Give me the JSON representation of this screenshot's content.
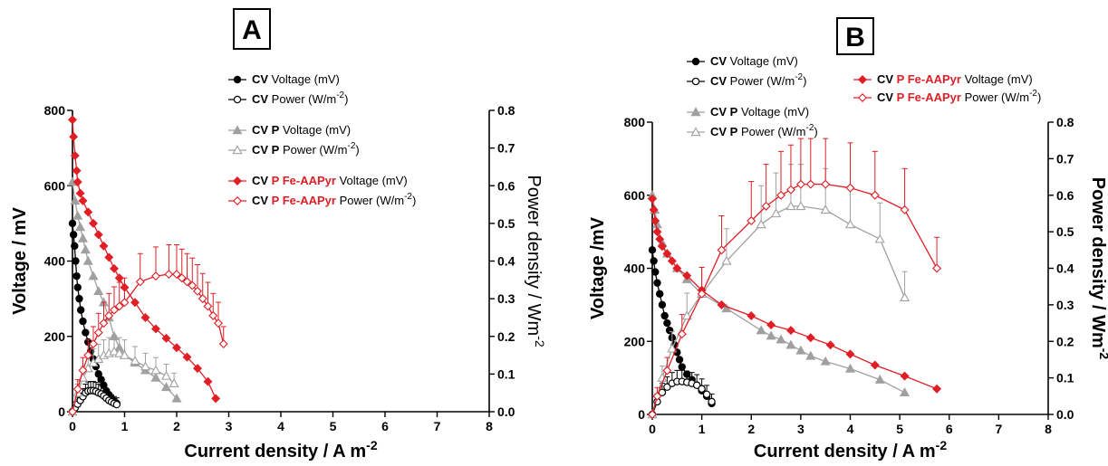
{
  "chart_data": [
    {
      "type": "line",
      "panel": "A",
      "xlabel": "Current density / A m",
      "xlabel_sup": "-2",
      "ylabel": "Voltage / mV",
      "y2label": "Power density / Wm",
      "y2label_sup": "-2",
      "xlim": [
        0,
        8
      ],
      "ylim": [
        0,
        800
      ],
      "y2lim": [
        0,
        0.8
      ],
      "xticks": [
        "0",
        "1",
        "2",
        "3",
        "4",
        "5",
        "6",
        "7",
        "8"
      ],
      "yticks": [
        "0",
        "200",
        "400",
        "600",
        "800"
      ],
      "y2ticks": [
        "0.0",
        "0.1",
        "0.2",
        "0.3",
        "0.4",
        "0.5",
        "0.6",
        "0.7",
        "0.8"
      ],
      "legend_position": "top-right",
      "series": [
        {
          "name": "Voltage (mV)",
          "tag": "CV",
          "tag2": "",
          "color": "#000000",
          "marker": "circle",
          "filled": true,
          "axis": "left",
          "x": [
            0,
            0.02,
            0.04,
            0.06,
            0.08,
            0.1,
            0.13,
            0.16,
            0.2,
            0.25,
            0.3,
            0.35,
            0.4,
            0.45,
            0.5,
            0.55,
            0.6,
            0.65,
            0.7,
            0.75,
            0.8,
            0.85
          ],
          "y": [
            500,
            470,
            440,
            400,
            360,
            330,
            300,
            270,
            240,
            210,
            185,
            160,
            140,
            120,
            100,
            85,
            70,
            55,
            45,
            35,
            28,
            22
          ]
        },
        {
          "name": "Power (W/m",
          "sup": "-2",
          "tail": ")",
          "tag": "CV",
          "tag2": "",
          "color": "#000000",
          "marker": "circle",
          "filled": false,
          "axis": "right",
          "x": [
            0,
            0.05,
            0.1,
            0.15,
            0.2,
            0.25,
            0.3,
            0.35,
            0.4,
            0.45,
            0.5,
            0.55,
            0.6,
            0.65,
            0.7,
            0.75,
            0.8,
            0.85
          ],
          "y": [
            0,
            0.01,
            0.02,
            0.03,
            0.04,
            0.05,
            0.055,
            0.056,
            0.056,
            0.054,
            0.05,
            0.047,
            0.042,
            0.036,
            0.03,
            0.026,
            0.022,
            0.019
          ]
        },
        {
          "name": "Voltage (mV)",
          "tag": "CV",
          "tag2": "P",
          "color": "#a0a0a0",
          "marker": "triangle",
          "filled": true,
          "axis": "left",
          "x": [
            0,
            0.05,
            0.1,
            0.15,
            0.2,
            0.25,
            0.3,
            0.4,
            0.5,
            0.6,
            0.7,
            0.8,
            0.9,
            1.0,
            1.2,
            1.4,
            1.6,
            1.8,
            2.0
          ],
          "y": [
            610,
            560,
            520,
            490,
            460,
            430,
            400,
            360,
            320,
            290,
            250,
            200,
            170,
            150,
            130,
            110,
            90,
            65,
            35
          ]
        },
        {
          "name": "Power (W/m",
          "sup": "-2",
          "tail": ")",
          "tag": "CV",
          "tag2": "P",
          "color": "#a0a0a0",
          "marker": "triangle",
          "filled": false,
          "axis": "right",
          "x": [
            0,
            0.1,
            0.2,
            0.3,
            0.4,
            0.5,
            0.6,
            0.7,
            0.8,
            0.9,
            1.0,
            1.2,
            1.4,
            1.6,
            1.8,
            1.95
          ],
          "y": [
            0,
            0.05,
            0.09,
            0.115,
            0.13,
            0.14,
            0.15,
            0.155,
            0.16,
            0.155,
            0.15,
            0.135,
            0.12,
            0.11,
            0.095,
            0.075
          ]
        },
        {
          "name": "Voltage (mV)",
          "tag": "CV",
          "tag2": "P Fe-AAPyr",
          "color": "#e01e25",
          "marker": "diamond",
          "filled": true,
          "axis": "left",
          "x": [
            0,
            0.02,
            0.05,
            0.08,
            0.1,
            0.15,
            0.2,
            0.3,
            0.4,
            0.5,
            0.6,
            0.7,
            0.8,
            0.9,
            1.0,
            1.2,
            1.4,
            1.6,
            1.8,
            2.0,
            2.2,
            2.4,
            2.6,
            2.75
          ],
          "y": [
            775,
            730,
            680,
            640,
            610,
            580,
            560,
            530,
            500,
            470,
            440,
            410,
            380,
            355,
            330,
            290,
            250,
            220,
            195,
            170,
            145,
            115,
            80,
            35
          ]
        },
        {
          "name": "Power (W/m",
          "sup": "-2",
          "tail": ")",
          "tag": "CV",
          "tag2": "P Fe-AAPyr",
          "color": "#e01e25",
          "marker": "diamond",
          "filled": false,
          "axis": "right",
          "x": [
            0,
            0.1,
            0.2,
            0.3,
            0.4,
            0.5,
            0.6,
            0.7,
            0.8,
            0.9,
            1.0,
            1.3,
            1.6,
            1.85,
            2.0,
            2.1,
            2.2,
            2.3,
            2.4,
            2.5,
            2.6,
            2.7,
            2.8,
            2.9
          ],
          "y": [
            0,
            0.06,
            0.11,
            0.15,
            0.18,
            0.21,
            0.235,
            0.255,
            0.27,
            0.28,
            0.29,
            0.345,
            0.36,
            0.365,
            0.365,
            0.355,
            0.345,
            0.335,
            0.32,
            0.3,
            0.28,
            0.255,
            0.235,
            0.18
          ]
        }
      ]
    },
    {
      "type": "line",
      "panel": "B",
      "xlabel": "Current density / A m",
      "xlabel_sup": "-2",
      "ylabel": "Voltage /mV",
      "y2label": "Power density / Wm",
      "y2label_sup": "-2",
      "xlim": [
        0,
        8
      ],
      "ylim": [
        0,
        800
      ],
      "y2lim": [
        0,
        0.8
      ],
      "xticks": [
        "0",
        "1",
        "2",
        "3",
        "4",
        "5",
        "6",
        "7",
        "8"
      ],
      "yticks": [
        "0",
        "200",
        "400",
        "600",
        "800"
      ],
      "y2ticks": [
        "0.0",
        "0.1",
        "0.2",
        "0.3",
        "0.4",
        "0.5",
        "0.6",
        "0.7",
        "0.8"
      ],
      "legend_position": "top",
      "series": [
        {
          "name": "Voltage (mV)",
          "tag": "CV",
          "tag2": "",
          "color": "#000000",
          "marker": "circle",
          "filled": true,
          "axis": "left",
          "x": [
            0,
            0.03,
            0.06,
            0.1,
            0.15,
            0.2,
            0.25,
            0.3,
            0.35,
            0.4,
            0.45,
            0.5,
            0.55,
            0.6,
            0.7,
            0.8,
            0.9,
            1.0,
            1.1,
            1.2
          ],
          "y": [
            450,
            420,
            390,
            360,
            330,
            300,
            270,
            250,
            230,
            210,
            190,
            170,
            150,
            130,
            110,
            95,
            80,
            65,
            50,
            30
          ]
        },
        {
          "name": "Power (W/m",
          "sup": "-2",
          "tail": ")",
          "tag": "CV",
          "tag2": "",
          "color": "#000000",
          "marker": "circle",
          "filled": false,
          "axis": "right",
          "x": [
            0,
            0.1,
            0.2,
            0.3,
            0.4,
            0.5,
            0.6,
            0.7,
            0.8,
            0.9,
            1.0,
            1.1,
            1.2
          ],
          "y": [
            0,
            0.035,
            0.06,
            0.075,
            0.085,
            0.09,
            0.09,
            0.088,
            0.085,
            0.08,
            0.07,
            0.055,
            0.035
          ]
        },
        {
          "name": "Voltage (mV)",
          "tag": "CV",
          "tag2": "P",
          "color": "#a0a0a0",
          "marker": "triangle",
          "filled": true,
          "axis": "left",
          "x": [
            0,
            0.05,
            0.1,
            0.2,
            0.3,
            0.5,
            0.7,
            1.0,
            1.5,
            2.2,
            2.4,
            2.6,
            2.8,
            3.0,
            3.2,
            3.5,
            4.0,
            4.6,
            5.1
          ],
          "y": [
            600,
            560,
            520,
            470,
            440,
            400,
            370,
            330,
            290,
            230,
            215,
            205,
            190,
            175,
            160,
            145,
            125,
            95,
            60
          ]
        },
        {
          "name": "Power (W/m",
          "sup": "-2",
          "tail": ")",
          "tag": "CV",
          "tag2": "P",
          "color": "#a0a0a0",
          "marker": "triangle",
          "filled": false,
          "axis": "right",
          "x": [
            0,
            0.2,
            0.4,
            0.7,
            1.0,
            1.5,
            2.2,
            2.5,
            2.8,
            3.0,
            3.5,
            4.0,
            4.6,
            5.1
          ],
          "y": [
            0,
            0.1,
            0.18,
            0.27,
            0.33,
            0.42,
            0.52,
            0.55,
            0.57,
            0.57,
            0.56,
            0.52,
            0.48,
            0.32
          ]
        },
        {
          "name": "Voltage (mV)",
          "tag": "CV",
          "tag2": "P Fe-AAPyr",
          "color": "#e01e25",
          "marker": "diamond",
          "filled": true,
          "axis": "left",
          "x": [
            0,
            0.03,
            0.06,
            0.1,
            0.15,
            0.2,
            0.3,
            0.4,
            0.5,
            0.7,
            1.0,
            1.4,
            2.0,
            2.4,
            2.8,
            3.2,
            3.6,
            4.0,
            4.5,
            5.1,
            5.75
          ],
          "y": [
            590,
            560,
            530,
            500,
            480,
            460,
            440,
            420,
            400,
            380,
            340,
            300,
            270,
            245,
            230,
            210,
            190,
            165,
            135,
            105,
            70
          ]
        },
        {
          "name": "Power (W/m",
          "sup": "-2",
          "tail": ")",
          "tag": "CV",
          "tag2": "P Fe-AAPyr",
          "color": "#e01e25",
          "marker": "diamond",
          "filled": false,
          "axis": "right",
          "x": [
            0,
            0.1,
            0.3,
            0.6,
            1.0,
            1.4,
            2.0,
            2.3,
            2.6,
            2.8,
            3.0,
            3.2,
            3.5,
            4.0,
            4.5,
            5.1,
            5.75
          ],
          "y": [
            0,
            0.05,
            0.12,
            0.22,
            0.33,
            0.45,
            0.53,
            0.57,
            0.6,
            0.615,
            0.63,
            0.63,
            0.63,
            0.62,
            0.6,
            0.56,
            0.4
          ]
        }
      ]
    }
  ]
}
